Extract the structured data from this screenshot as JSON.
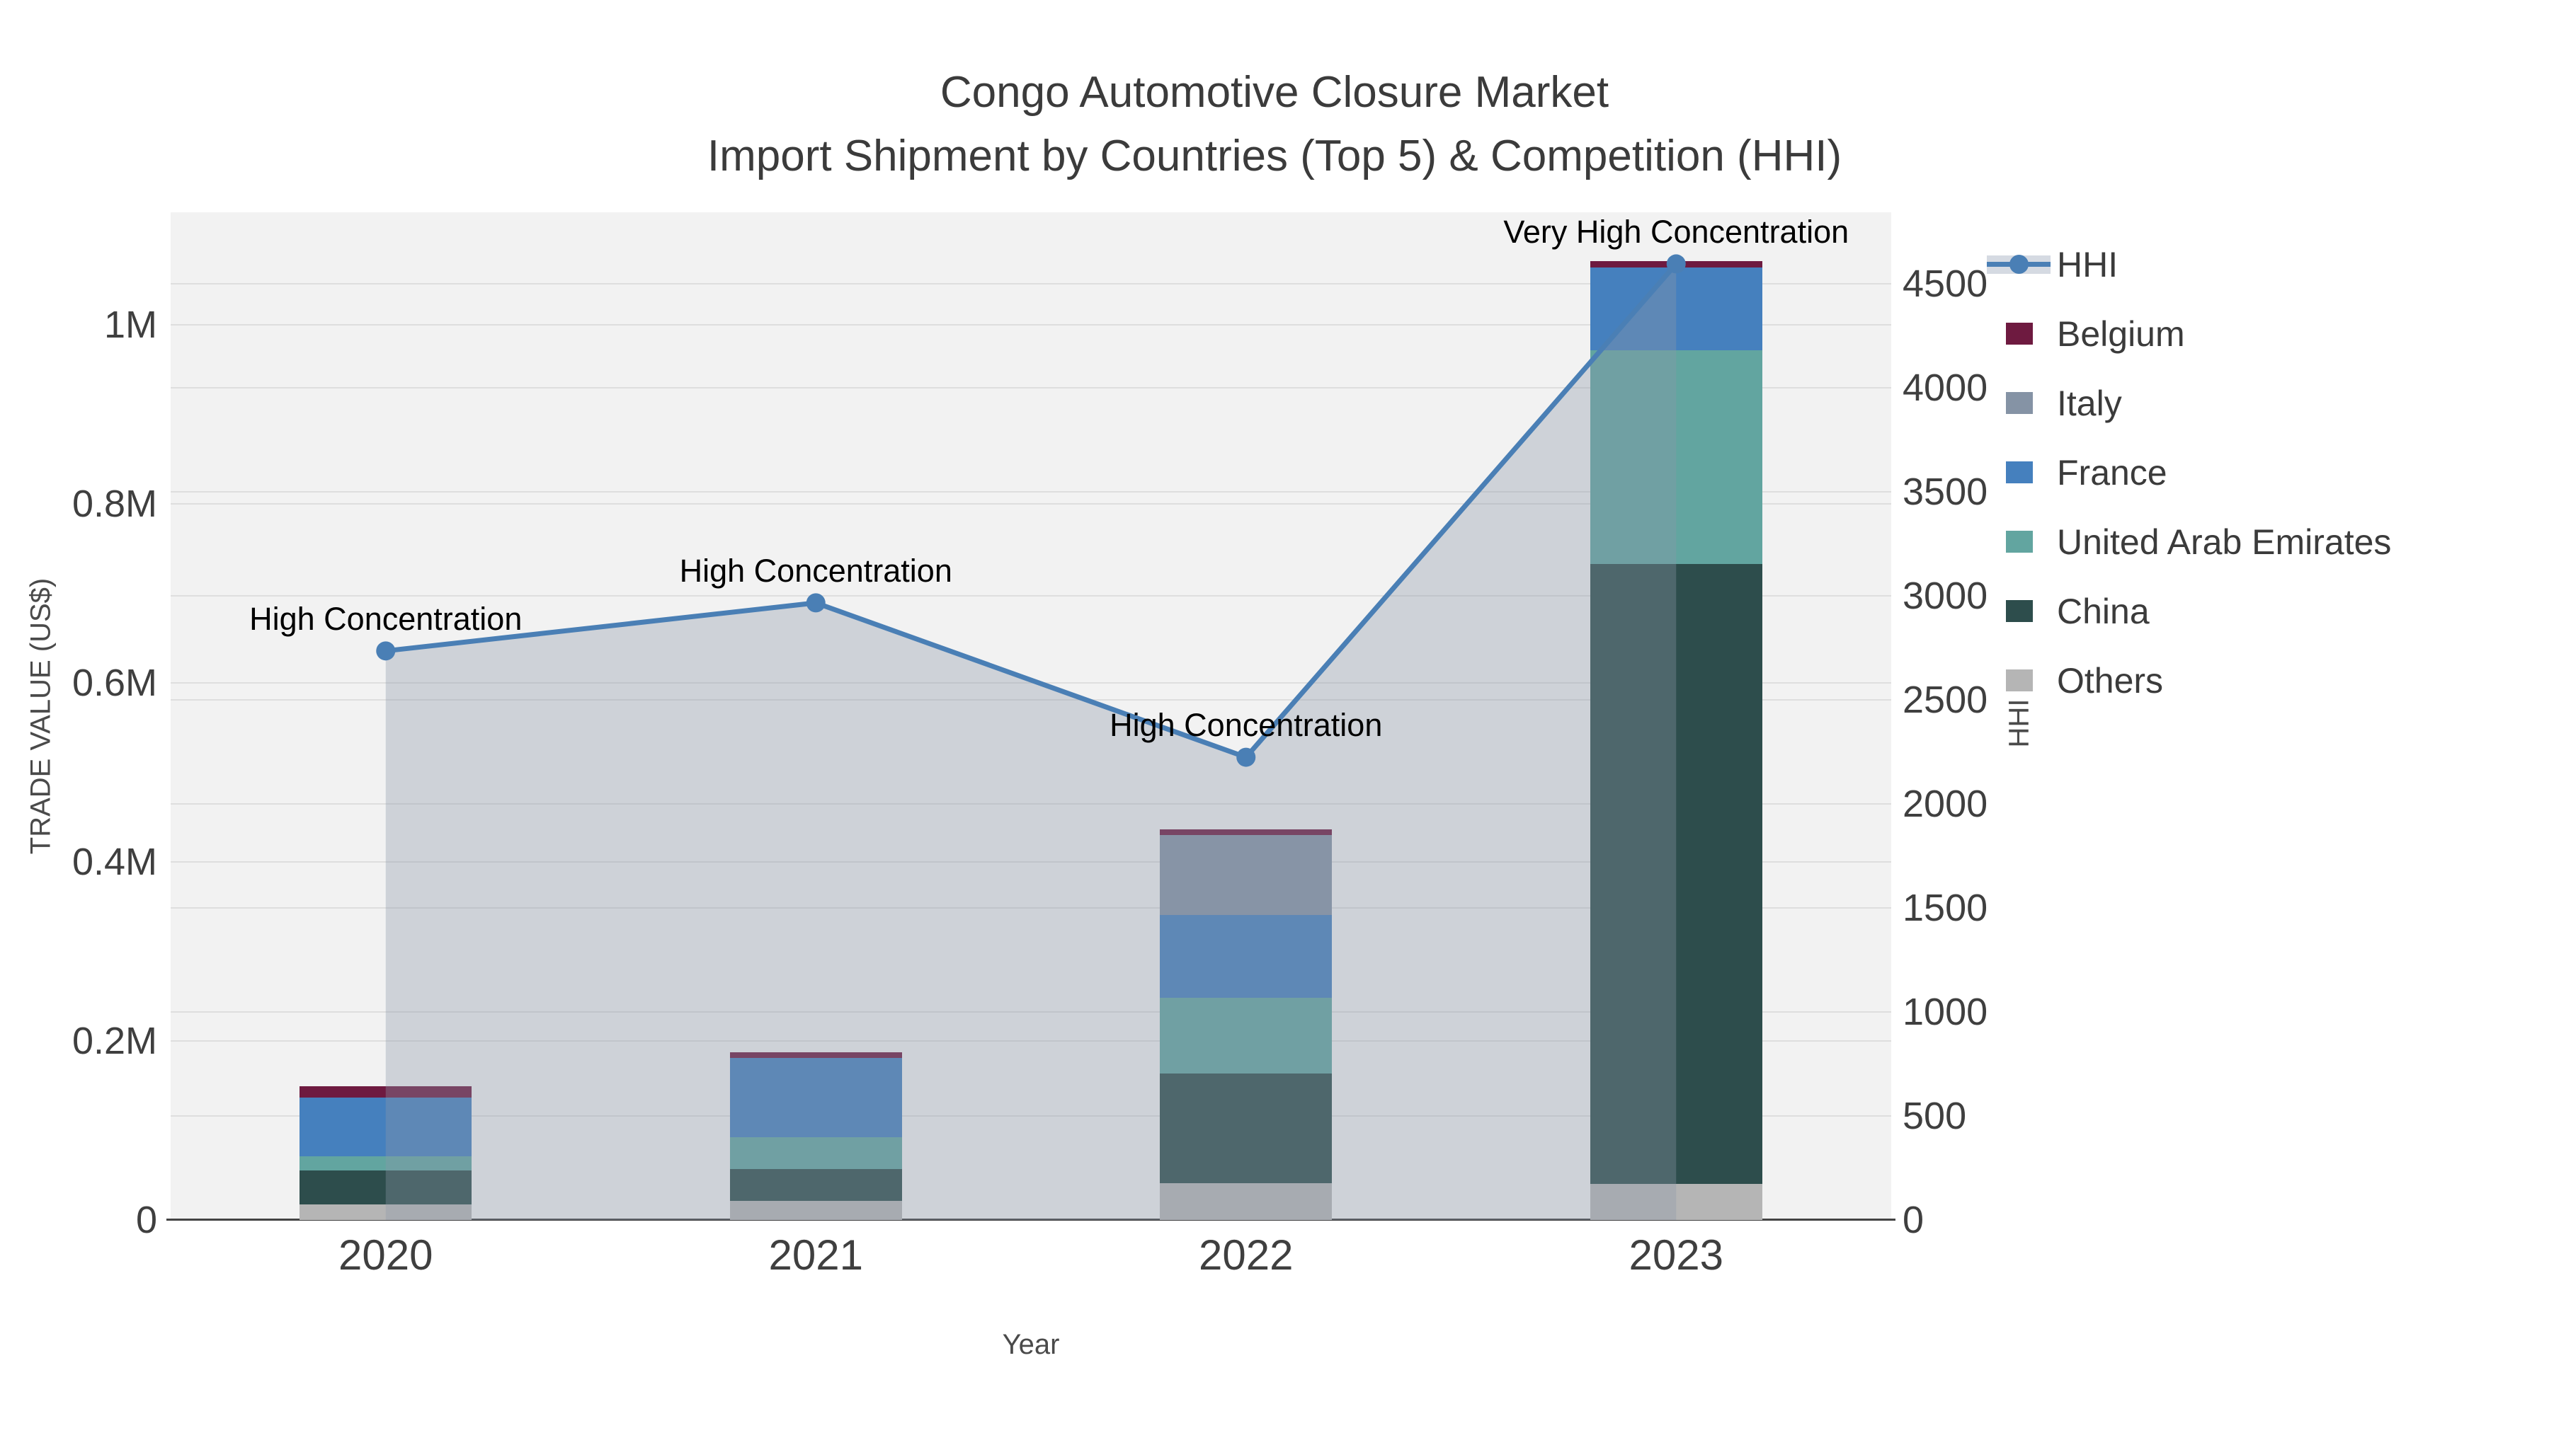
{
  "title": {
    "line1": "Congo Automotive Closure Market",
    "line2": "Import Shipment by Countries (Top 5) & Competition (HHI)"
  },
  "axes": {
    "x_title": "Year",
    "y_left_title": "TRADE VALUE (US$)",
    "y_right_title": "HHI"
  },
  "chart_data": {
    "type": "bar",
    "subtype": "stacked bars (trade value, left axis) + HHI line with area fill (right axis)",
    "categories": [
      "2020",
      "2021",
      "2022",
      "2023"
    ],
    "series": [
      {
        "name": "Belgium",
        "color": "#6E1A40",
        "values": [
          12600,
          6300,
          6700,
          7100
        ]
      },
      {
        "name": "Italy",
        "color": "#8593A5",
        "values": [
          0,
          0,
          89300,
          0
        ]
      },
      {
        "name": "France",
        "color": "#4580BE",
        "values": [
          65600,
          88500,
          92500,
          92500
        ]
      },
      {
        "name": "United Arab Emirates",
        "color": "#62A5A0",
        "values": [
          15800,
          35600,
          84600,
          238700
        ]
      },
      {
        "name": "China",
        "color": "#2D4D4C",
        "values": [
          38000,
          35600,
          122500,
          692500
        ]
      },
      {
        "name": "Others",
        "color": "#B5B5B5",
        "values": [
          17400,
          21400,
          41100,
          40300
        ]
      }
    ],
    "stack_order": "reverse-of-series-list (Others at bottom, Belgium on top)",
    "line_series": {
      "name": "HHI",
      "color": "#4A7FB5",
      "area_fill": "rgba(140,152,170,0.35)",
      "values": [
        2735,
        2966,
        2224,
        4595
      ]
    },
    "annotations": [
      {
        "category": "2020",
        "text": "High Concentration"
      },
      {
        "category": "2021",
        "text": "High Concentration"
      },
      {
        "category": "2022",
        "text": "High Concentration"
      },
      {
        "category": "2023",
        "text": "Very High Concentration"
      }
    ],
    "y_left_axis": {
      "label": "TRADE VALUE (US$)",
      "range": [
        0,
        1126000
      ],
      "ticks": [
        {
          "value": 0,
          "label": "0"
        },
        {
          "value": 200000,
          "label": "0.2M"
        },
        {
          "value": 400000,
          "label": "0.4M"
        },
        {
          "value": 600000,
          "label": "0.6M"
        },
        {
          "value": 800000,
          "label": "0.8M"
        },
        {
          "value": 1000000,
          "label": "1M"
        }
      ]
    },
    "y_right_axis": {
      "label": "HHI",
      "range": [
        0,
        4843
      ],
      "ticks": [
        {
          "value": 0,
          "label": "0"
        },
        {
          "value": 500,
          "label": "500"
        },
        {
          "value": 1000,
          "label": "1000"
        },
        {
          "value": 1500,
          "label": "1500"
        },
        {
          "value": 2000,
          "label": "2000"
        },
        {
          "value": 2500,
          "label": "2500"
        },
        {
          "value": 3000,
          "label": "3000"
        },
        {
          "value": 3500,
          "label": "3500"
        },
        {
          "value": 4000,
          "label": "4000"
        },
        {
          "value": 4500,
          "label": "4500"
        }
      ]
    },
    "grid": true,
    "legend_position": "right",
    "legend": [
      "HHI",
      "Belgium",
      "Italy",
      "France",
      "United Arab Emirates",
      "China",
      "Others"
    ]
  },
  "colors": {
    "plot_bg": "#F2F2F2",
    "grid": "#DEDEDE",
    "axis_line": "#444444",
    "text": "#3F3F3F",
    "annotation": "#000000",
    "hhi_legend_band": "#D5DAE2"
  }
}
